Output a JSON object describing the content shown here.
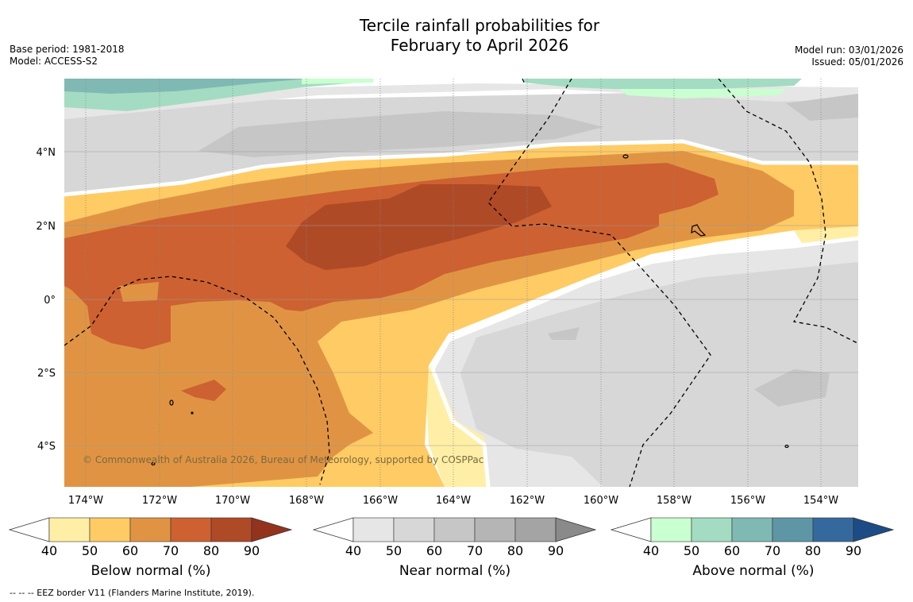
{
  "title": {
    "line1": "Tercile rainfall probabilities for",
    "line2": "February to April 2026"
  },
  "meta": {
    "base_period": "Base period: 1981-2018",
    "model": "Model: ACCESS-S2",
    "model_run": "Model run: 03/01/2026",
    "issued": "Issued: 05/01/2026"
  },
  "axes": {
    "lon_ticks": [
      "174°W",
      "172°W",
      "170°W",
      "168°W",
      "166°W",
      "164°W",
      "162°W",
      "160°W",
      "158°W",
      "156°W",
      "154°W"
    ],
    "lat_ticks": [
      "4°N",
      "2°N",
      "0°",
      "2°S",
      "4°S"
    ]
  },
  "copyright": "© Commonwealth of Australia 2026, Bureau of Meteorology, supported by COSPPac",
  "colorbars": [
    {
      "name": "below",
      "label": "Below normal (%)",
      "ticks": [
        "40",
        "50",
        "60",
        "70",
        "80",
        "90"
      ],
      "colors": [
        "#ffefa6",
        "#ffcb64",
        "#e09443",
        "#cd6131",
        "#af4a26",
        "#93331e"
      ]
    },
    {
      "name": "near",
      "label": "Near normal (%)",
      "ticks": [
        "40",
        "50",
        "60",
        "70",
        "80",
        "90"
      ],
      "colors": [
        "#e6e6e6",
        "#d7d7d7",
        "#c6c6c6",
        "#b5b5b5",
        "#a4a4a4",
        "#8a8a8a"
      ]
    },
    {
      "name": "above",
      "label": "Above normal (%)",
      "ticks": [
        "40",
        "50",
        "60",
        "70",
        "80",
        "90"
      ],
      "colors": [
        "#c9ffd1",
        "#a3dcc2",
        "#80b9b4",
        "#5e96a6",
        "#35699e",
        "#1c4c85"
      ]
    }
  ],
  "footnote": "--  --  -- EEZ border V11 (Flanders Marine Institute, 2019)."
}
